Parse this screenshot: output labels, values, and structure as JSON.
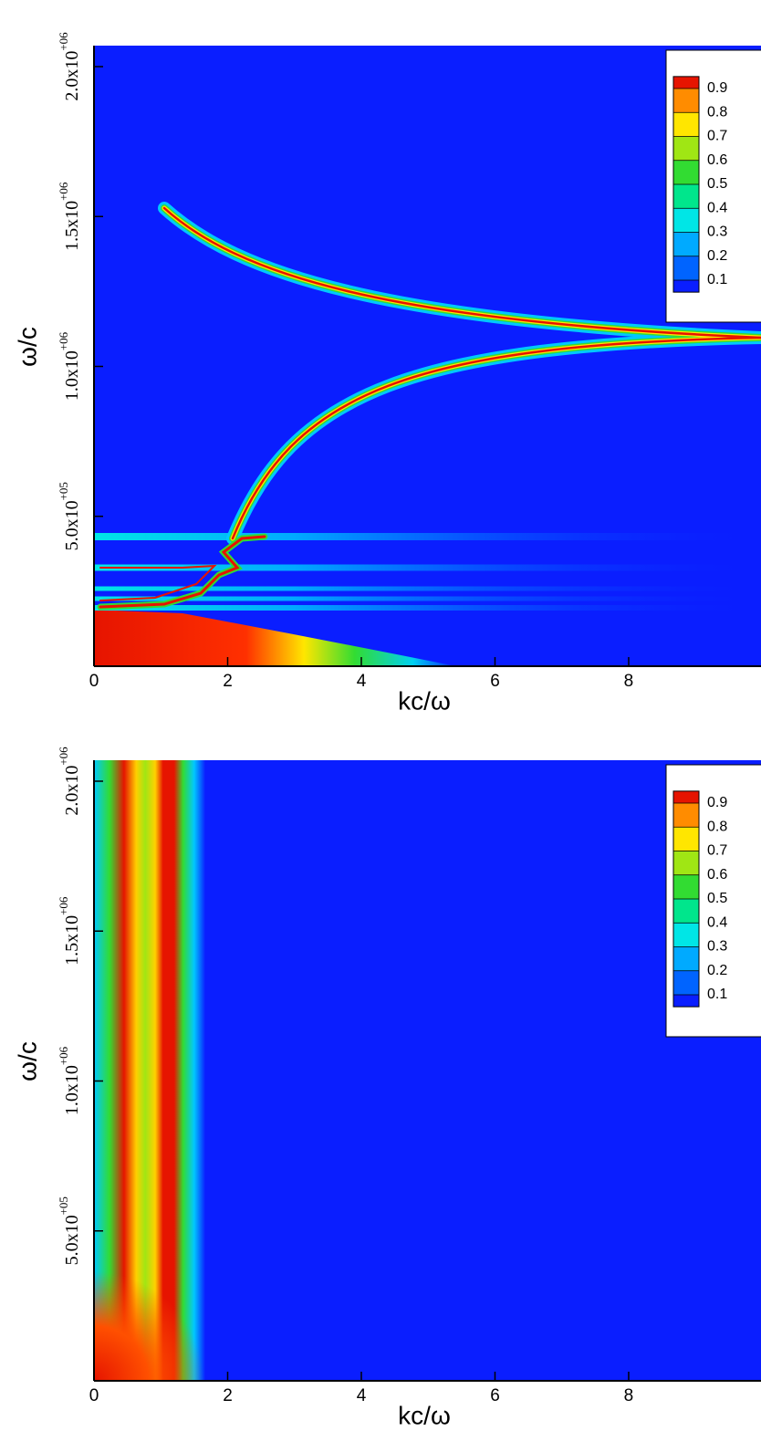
{
  "chart_data": [
    {
      "type": "heatmap",
      "xlabel": "kc/ω",
      "ylabel": "ω/c",
      "xlim": [
        0,
        9.98
      ],
      "xticks": [
        0,
        2,
        4,
        6,
        8
      ],
      "ylim": [
        0,
        2070000
      ],
      "yticks": [
        {
          "value": 500000,
          "label": "5.0x10+05"
        },
        {
          "value": 1000000,
          "label": "1.0x10+06"
        },
        {
          "value": 1500000,
          "label": "1.5x10+06"
        },
        {
          "value": 2000000,
          "label": "2.0x10+06"
        }
      ],
      "colorbar": {
        "levels": [
          0.1,
          0.2,
          0.3,
          0.4,
          0.5,
          0.6,
          0.7,
          0.8,
          0.9
        ],
        "colors": [
          "#0a1eff",
          "#0064ff",
          "#00aaff",
          "#00e6e6",
          "#00e68c",
          "#32dc32",
          "#a0e614",
          "#ffe600",
          "#ff8c00",
          "#e61400"
        ]
      }
    },
    {
      "type": "heatmap",
      "xlabel": "kc/ω",
      "ylabel": "ω/c",
      "xlim": [
        0,
        9.98
      ],
      "xticks": [
        0,
        2,
        4,
        6,
        8
      ],
      "ylim": [
        0,
        2070000
      ],
      "yticks": [
        {
          "value": 500000,
          "label": "5.0x10+05"
        },
        {
          "value": 1000000,
          "label": "1.0x10+06"
        },
        {
          "value": 1500000,
          "label": "1.5x10+06"
        },
        {
          "value": 2000000,
          "label": "2.0x10+06"
        }
      ],
      "colorbar": {
        "levels": [
          0.1,
          0.2,
          0.3,
          0.4,
          0.5,
          0.6,
          0.7,
          0.8,
          0.9
        ],
        "colors": [
          "#0a1eff",
          "#0064ff",
          "#00aaff",
          "#00e6e6",
          "#00e68c",
          "#32dc32",
          "#a0e614",
          "#ffe600",
          "#ff8c00",
          "#e61400"
        ]
      }
    }
  ]
}
